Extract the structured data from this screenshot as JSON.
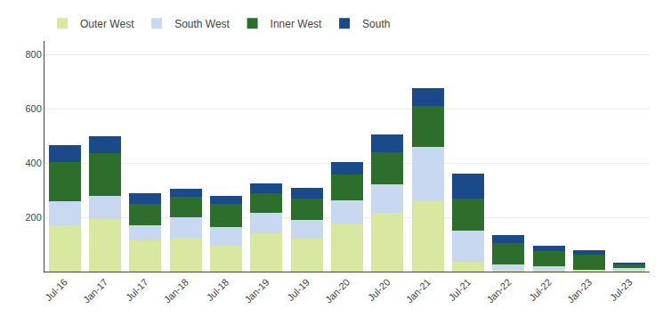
{
  "chart_data": {
    "type": "bar",
    "stacked": true,
    "categories": [
      "Jul-16",
      "Jan-17",
      "Jul-17",
      "Jan-18",
      "Jul-18",
      "Jan-19",
      "Jul-19",
      "Jan-20",
      "Jul-20",
      "Jan-21",
      "Jul-21",
      "Jan-22",
      "Jul-22",
      "Jan-23",
      "Jul-23"
    ],
    "series": [
      {
        "name": "Outer West",
        "color": "#d9e8a0",
        "values": [
          170,
          195,
          115,
          125,
          95,
          140,
          120,
          175,
          215,
          260,
          35,
          8,
          8,
          4,
          8
        ]
      },
      {
        "name": "South West",
        "color": "#c8d8f0",
        "values": [
          90,
          85,
          55,
          75,
          70,
          75,
          70,
          88,
          105,
          200,
          115,
          18,
          12,
          4,
          4
        ]
      },
      {
        "name": "Inner West",
        "color": "#2d6e2d",
        "values": [
          145,
          155,
          80,
          75,
          85,
          75,
          80,
          95,
          120,
          150,
          120,
          80,
          55,
          55,
          15
        ]
      },
      {
        "name": "South",
        "color": "#1a4a8a",
        "values": [
          60,
          65,
          40,
          30,
          30,
          35,
          40,
          45,
          65,
          65,
          90,
          30,
          20,
          15,
          5
        ]
      }
    ],
    "ylim": [
      0,
      850
    ],
    "yticks": [
      200,
      400,
      600,
      800
    ],
    "grid": true,
    "legend": "top"
  }
}
